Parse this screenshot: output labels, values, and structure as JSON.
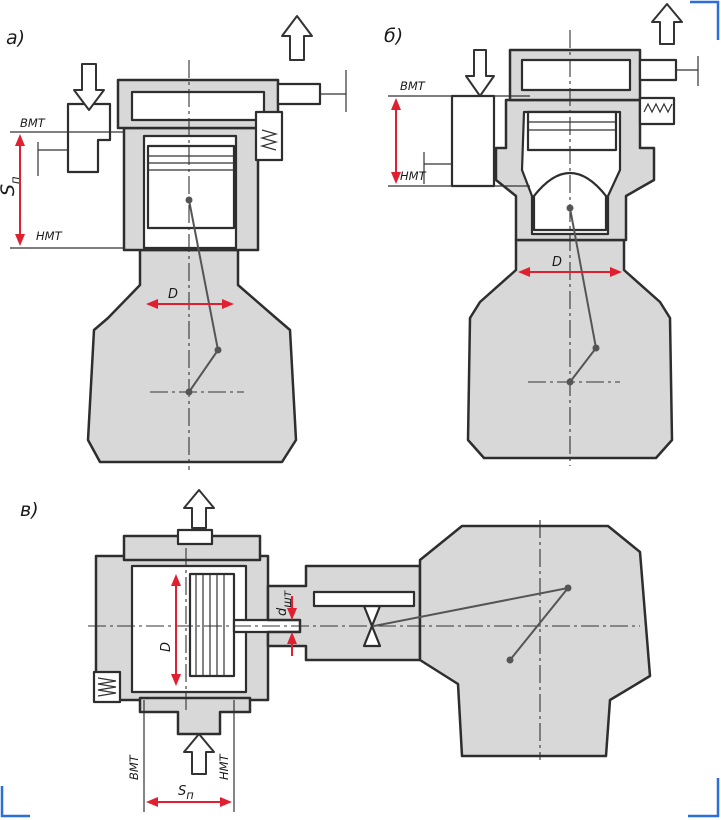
{
  "panels": {
    "a": {
      "label": "а)",
      "tdc": "ВМТ",
      "bdc": "НМТ",
      "stroke": "S",
      "stroke_sub": "п",
      "bore": "D"
    },
    "b": {
      "label": "б)",
      "tdc": "ВМТ",
      "bdc": "НМТ",
      "bore": "D"
    },
    "c": {
      "label": "в)",
      "tdc": "ВМТ",
      "bdc": "НМТ",
      "stroke": "S",
      "stroke_sub": "п",
      "bore": "D",
      "rod": "d",
      "rod_sub": "шт"
    }
  },
  "colors": {
    "dimension": "#e02030",
    "frame_corner": "#2a6fd6",
    "ink": "#2e2e2e",
    "fill": "#d8d8d8"
  }
}
